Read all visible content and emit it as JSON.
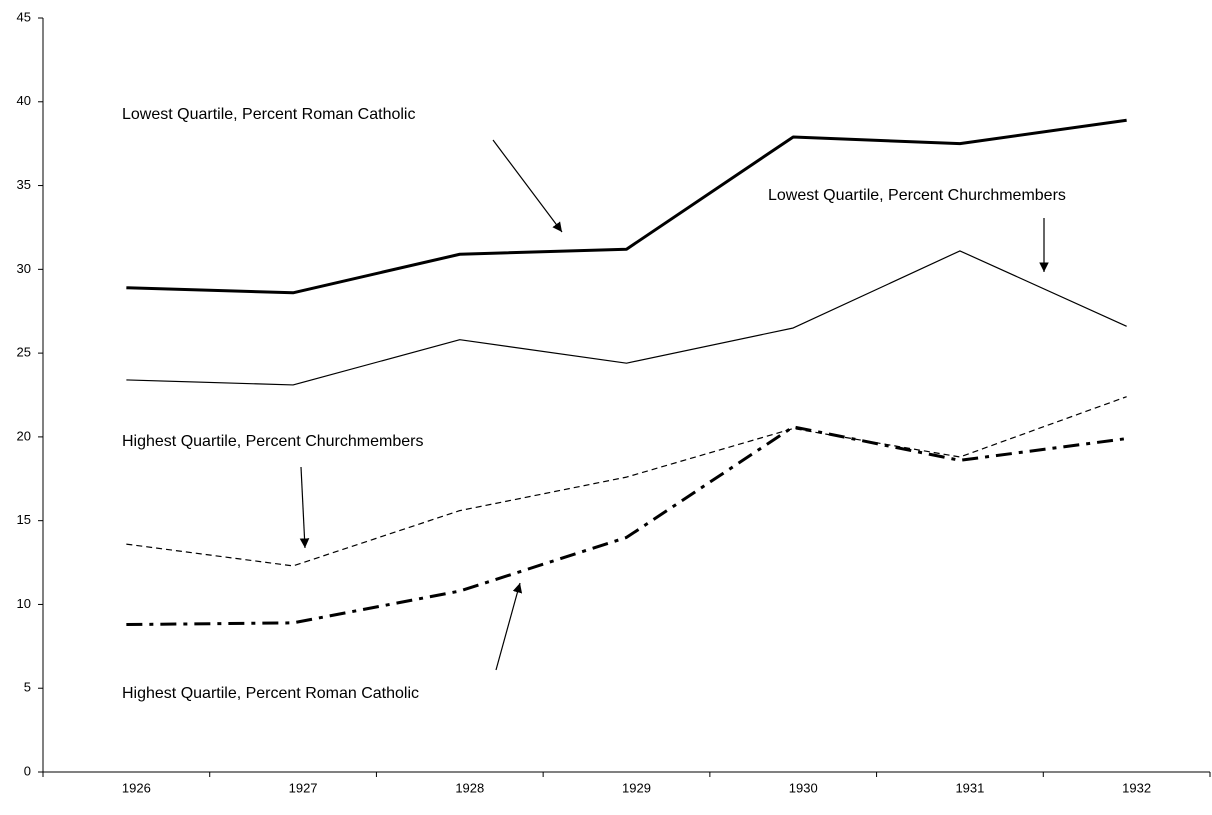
{
  "chart_data": {
    "type": "line",
    "categories": [
      "1926",
      "1927",
      "1928",
      "1929",
      "1930",
      "1931",
      "1932"
    ],
    "series": [
      {
        "name": "Lowest Quartile, Percent Roman Catholic",
        "color": "#000000",
        "line_width": 3,
        "line_style": "solid",
        "values": [
          28.9,
          28.6,
          30.9,
          31.2,
          37.9,
          37.5,
          38.9
        ]
      },
      {
        "name": "Lowest Quartile, Percent Churchmembers",
        "color": "#000000",
        "line_width": 1.2,
        "line_style": "solid",
        "values": [
          23.4,
          23.1,
          25.8,
          24.4,
          26.5,
          31.1,
          26.6
        ]
      },
      {
        "name": "Highest Quartile, Percent Churchmembers",
        "color": "#000000",
        "line_width": 1.2,
        "line_style": "dashed",
        "values": [
          13.6,
          12.3,
          15.6,
          17.6,
          20.5,
          18.8,
          22.4
        ]
      },
      {
        "name": "Highest Quartile, Percent Roman Catholic",
        "color": "#000000",
        "line_width": 3,
        "line_style": "dashdot",
        "values": [
          8.8,
          8.9,
          10.8,
          14.0,
          20.6,
          18.6,
          19.9
        ]
      }
    ],
    "ylim": [
      0,
      45
    ],
    "yticks": [
      0,
      5,
      10,
      15,
      20,
      25,
      30,
      35,
      40,
      45
    ],
    "grid": false
  }
}
